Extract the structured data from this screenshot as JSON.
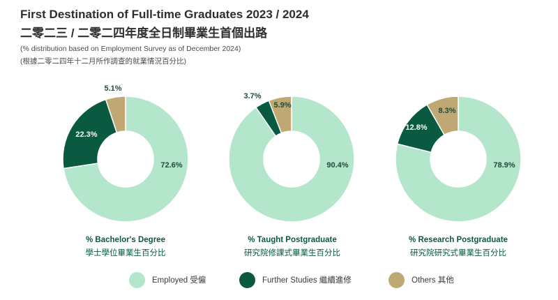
{
  "header": {
    "title": "First Destination of Full-time Graduates 2023 / 2024",
    "title_zh": "二零二三 / 二零二四年度全日制畢業生首個出路",
    "subtitle": "(% distribution based on Employment Survey as of December 2024)",
    "subtitle_zh": "(根據二零二四年十二月所作調查的就業情況百分比)"
  },
  "colors": {
    "employed": "#b3e6cb",
    "further_studies": "#0a5a42",
    "others": "#bfa873"
  },
  "legend": [
    {
      "key": "employed",
      "label": "Employed 受僱"
    },
    {
      "key": "further_studies",
      "label": "Further Studies 繼續進修"
    },
    {
      "key": "others",
      "label": "Others 其他"
    }
  ],
  "chart_data": [
    {
      "type": "pie",
      "title": "% Bachelor's Degree",
      "title_zh": "學士學位畢業生百分比",
      "slices": [
        {
          "key": "employed",
          "value": 72.6,
          "label": "72.6%"
        },
        {
          "key": "further_studies",
          "value": 22.3,
          "label": "22.3%"
        },
        {
          "key": "others",
          "value": 5.1,
          "label": "5.1%"
        }
      ]
    },
    {
      "type": "pie",
      "title": "% Taught Postgraduate",
      "title_zh": "研究院修課式畢業生百分比",
      "slices": [
        {
          "key": "employed",
          "value": 90.4,
          "label": "90.4%"
        },
        {
          "key": "further_studies",
          "value": 3.7,
          "label": "3.7%"
        },
        {
          "key": "others",
          "value": 5.9,
          "label": "5.9%"
        }
      ]
    },
    {
      "type": "pie",
      "title": "% Research Postgraduate",
      "title_zh": "研究院研究式畢業生百分比",
      "slices": [
        {
          "key": "employed",
          "value": 78.9,
          "label": "78.9%"
        },
        {
          "key": "further_studies",
          "value": 12.8,
          "label": "12.8%"
        },
        {
          "key": "others",
          "value": 8.3,
          "label": "8.3%"
        }
      ]
    }
  ]
}
